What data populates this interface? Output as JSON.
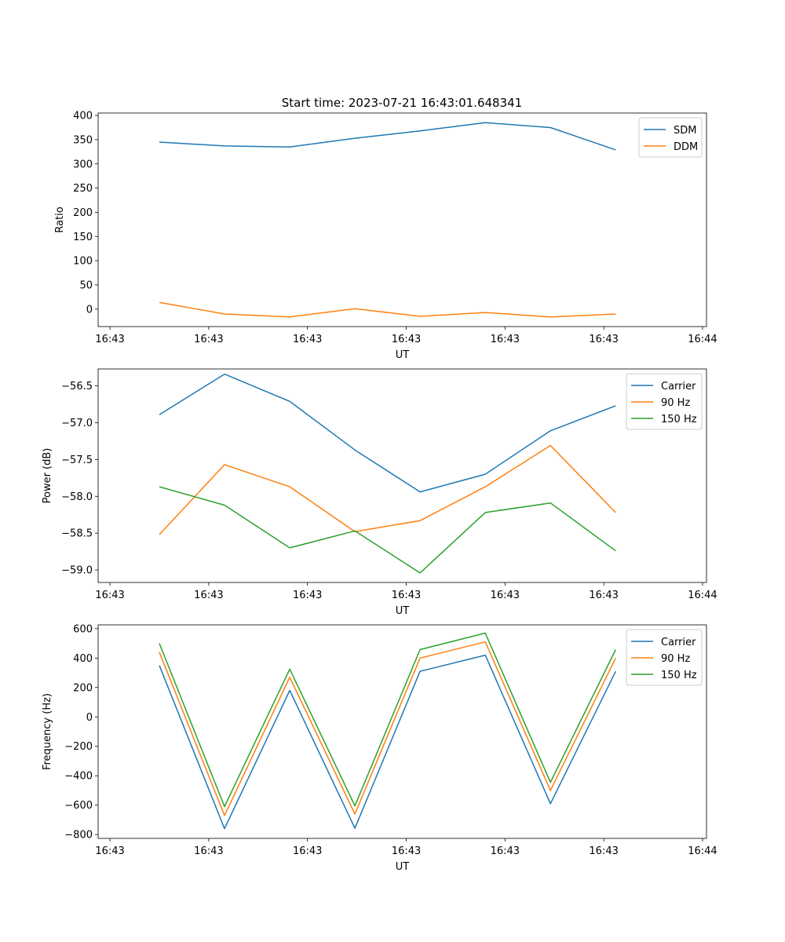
{
  "figure": {
    "title": "Start time: 2023-07-21 16:43:01.648341"
  },
  "colors": {
    "blue": "#1f77b4",
    "orange": "#ff7f0e",
    "green": "#2ca02c",
    "axis": "#000000",
    "legend_border": "#cccccc"
  },
  "chart_data": [
    {
      "type": "line",
      "title": "Start time: 2023-07-21 16:43:01.648341",
      "xlabel": "UT",
      "ylabel": "Ratio",
      "x_tick_labels": [
        "16:43",
        "16:43",
        "16:43",
        "16:43",
        "16:43",
        "16:43",
        "16:44"
      ],
      "x_tick_positions": [
        0,
        5,
        10,
        15,
        20,
        25,
        30
      ],
      "xlim": [
        -0.6,
        30.2
      ],
      "x": [
        2.5,
        5.8,
        9.1,
        12.4,
        15.7,
        19.0,
        22.3,
        25.6
      ],
      "ylim": [
        -36,
        405
      ],
      "y_ticks": [
        0,
        50,
        100,
        150,
        200,
        250,
        300,
        350,
        400
      ],
      "legend": "top-right",
      "series": [
        {
          "name": "SDM",
          "color": "#1f77b4",
          "values": [
            345,
            337,
            335,
            353,
            368,
            385,
            375,
            329
          ]
        },
        {
          "name": "DDM",
          "color": "#ff7f0e",
          "values": [
            14,
            -10,
            -16,
            1,
            -15,
            -7,
            -16,
            -10
          ]
        }
      ]
    },
    {
      "type": "line",
      "title": "",
      "xlabel": "UT",
      "ylabel": "Power (dB)",
      "x_tick_labels": [
        "16:43",
        "16:43",
        "16:43",
        "16:43",
        "16:43",
        "16:43",
        "16:44"
      ],
      "x_tick_positions": [
        0,
        5,
        10,
        15,
        20,
        25,
        30
      ],
      "xlim": [
        -0.6,
        30.2
      ],
      "x": [
        2.5,
        5.8,
        9.1,
        12.4,
        15.7,
        19.0,
        22.3,
        25.6
      ],
      "ylim": [
        -59.17,
        -56.27
      ],
      "y_ticks": [
        -59.0,
        -58.5,
        -58.0,
        -57.5,
        -57.0,
        -56.5
      ],
      "y_tick_labels": [
        "−59.0",
        "−58.5",
        "−58.0",
        "−57.5",
        "−57.0",
        "−56.5"
      ],
      "legend": "top-right",
      "series": [
        {
          "name": "Carrier",
          "color": "#1f77b4",
          "values": [
            -56.89,
            -56.34,
            -56.71,
            -57.37,
            -57.94,
            -57.7,
            -57.11,
            -56.77
          ]
        },
        {
          "name": "90 Hz",
          "color": "#ff7f0e",
          "values": [
            -58.52,
            -57.57,
            -57.87,
            -58.48,
            -58.33,
            -57.87,
            -57.31,
            -58.22
          ]
        },
        {
          "name": "150 Hz",
          "color": "#2ca02c",
          "values": [
            -57.87,
            -58.12,
            -58.7,
            -58.47,
            -59.04,
            -58.22,
            -58.09,
            -58.74
          ]
        }
      ]
    },
    {
      "type": "line",
      "title": "",
      "xlabel": "UT",
      "ylabel": "Frequency (Hz)",
      "x_tick_labels": [
        "16:43",
        "16:43",
        "16:43",
        "16:43",
        "16:43",
        "16:43",
        "16:44"
      ],
      "x_tick_positions": [
        0,
        5,
        10,
        15,
        20,
        25,
        30
      ],
      "xlim": [
        -0.6,
        30.2
      ],
      "x": [
        2.5,
        5.8,
        9.1,
        12.4,
        15.7,
        19.0,
        22.3,
        25.6
      ],
      "ylim": [
        -826,
        626
      ],
      "y_ticks": [
        -800,
        -600,
        -400,
        -200,
        0,
        200,
        400,
        600
      ],
      "y_tick_labels": [
        "−800",
        "−600",
        "−400",
        "−200",
        "0",
        "200",
        "400",
        "600"
      ],
      "legend": "top-right",
      "series": [
        {
          "name": "Carrier",
          "color": "#1f77b4",
          "values": [
            350,
            -760,
            180,
            -757,
            310,
            420,
            -590,
            310
          ]
        },
        {
          "name": "90 Hz",
          "color": "#ff7f0e",
          "values": [
            440,
            -670,
            270,
            -660,
            400,
            510,
            -500,
            400
          ]
        },
        {
          "name": "150 Hz",
          "color": "#2ca02c",
          "values": [
            500,
            -610,
            325,
            -605,
            458,
            570,
            -445,
            458
          ]
        }
      ]
    }
  ]
}
